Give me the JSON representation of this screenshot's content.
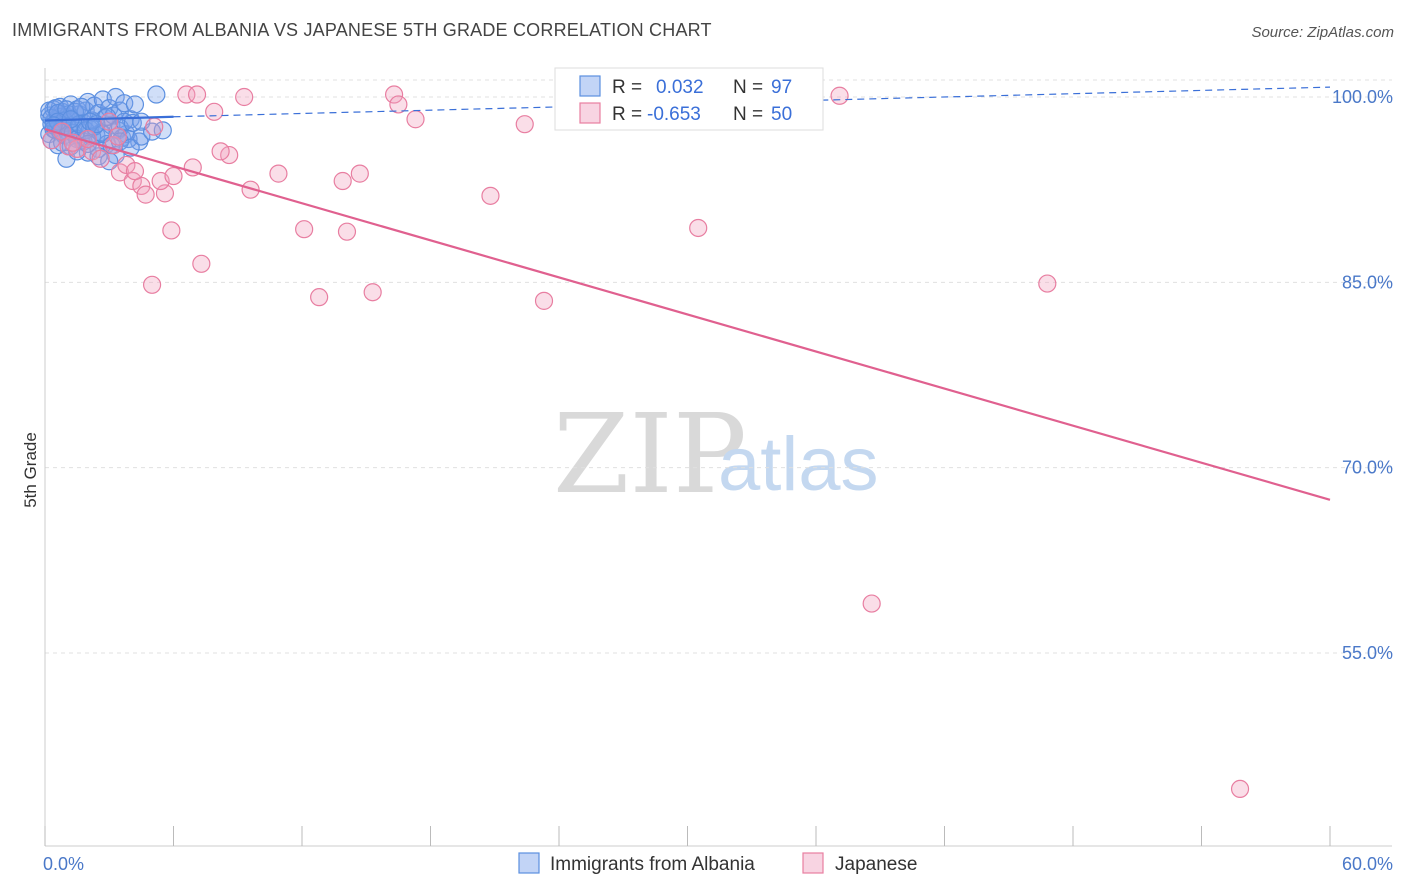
{
  "title": "IMMIGRANTS FROM ALBANIA VS JAPANESE 5TH GRADE CORRELATION CHART",
  "source": "Source: ZipAtlas.com",
  "watermark": {
    "zip": "ZIP",
    "atlas": "atlas"
  },
  "colors": {
    "blue": "#5b8fe0",
    "blue_fill": "rgba(120,160,235,0.35)",
    "blue_line": "#3a6fd8",
    "pink": "#e87ea1",
    "pink_fill": "rgba(240,160,190,0.35)",
    "pink_line": "#e0608f",
    "grid": "#e0e0e0",
    "tick_text": "#4a78c8"
  },
  "chart_data": {
    "type": "scatter",
    "title": "IMMIGRANTS FROM ALBANIA VS JAPANESE 5TH GRADE CORRELATION CHART",
    "xlabel": "",
    "ylabel": "5th Grade",
    "xlim": [
      0,
      60
    ],
    "ylim": [
      40,
      102
    ],
    "x_tick_labels": [
      "0.0%",
      "60.0%"
    ],
    "y_ticks": [
      55,
      70,
      85,
      100
    ],
    "y_tick_labels": [
      "55.0%",
      "70.0%",
      "85.0%",
      "100.0%"
    ],
    "legend": [
      {
        "r_label": "R =",
        "r_value": "0.032",
        "n_label": "N =",
        "n_value": "97"
      },
      {
        "r_label": "R =",
        "r_value": "-0.653",
        "n_label": "N =",
        "n_value": "50"
      }
    ],
    "series": [
      {
        "name": "Immigrants from Albania",
        "color": "blue",
        "trend": {
          "x": [
            0,
            6
          ],
          "y": [
            98.1,
            98.4
          ],
          "dashed_to": [
            60,
            100.8
          ]
        },
        "points": [
          [
            0.2,
            98.5
          ],
          [
            0.3,
            97.8
          ],
          [
            0.4,
            99.0
          ],
          [
            0.5,
            98.2
          ],
          [
            0.6,
            97.5
          ],
          [
            0.7,
            99.2
          ],
          [
            0.8,
            98.8
          ],
          [
            0.9,
            97.2
          ],
          [
            1.0,
            98.4
          ],
          [
            1.1,
            96.8
          ],
          [
            1.2,
            99.4
          ],
          [
            1.3,
            98.0
          ],
          [
            1.4,
            97.6
          ],
          [
            1.5,
            99.0
          ],
          [
            1.6,
            98.6
          ],
          [
            1.7,
            96.5
          ],
          [
            1.8,
            97.9
          ],
          [
            1.9,
            98.9
          ],
          [
            2.0,
            99.6
          ],
          [
            2.1,
            97.4
          ],
          [
            2.2,
            98.1
          ],
          [
            2.3,
            99.3
          ],
          [
            2.4,
            96.9
          ],
          [
            2.5,
            98.7
          ],
          [
            2.6,
            97.1
          ],
          [
            2.7,
            99.8
          ],
          [
            2.8,
            98.3
          ],
          [
            2.9,
            96.2
          ],
          [
            3.0,
            99.1
          ],
          [
            3.1,
            97.7
          ],
          [
            3.2,
            98.5
          ],
          [
            3.3,
            100.0
          ],
          [
            3.4,
            97.3
          ],
          [
            3.5,
            98.9
          ],
          [
            3.6,
            96.7
          ],
          [
            3.7,
            99.5
          ],
          [
            3.8,
            97.0
          ],
          [
            4.0,
            98.2
          ],
          [
            4.2,
            99.4
          ],
          [
            4.4,
            96.4
          ],
          [
            0.2,
            97.0
          ],
          [
            0.3,
            96.5
          ],
          [
            0.4,
            98.0
          ],
          [
            0.5,
            97.3
          ],
          [
            0.6,
            96.1
          ],
          [
            0.7,
            98.4
          ],
          [
            0.8,
            97.6
          ],
          [
            0.9,
            96.9
          ],
          [
            1.0,
            97.9
          ],
          [
            1.1,
            98.6
          ],
          [
            0.2,
            98.9
          ],
          [
            0.3,
            98.3
          ],
          [
            0.4,
            97.4
          ],
          [
            0.5,
            99.1
          ],
          [
            0.6,
            98.7
          ],
          [
            0.7,
            97.2
          ],
          [
            0.8,
            96.3
          ],
          [
            0.9,
            98.1
          ],
          [
            1.0,
            99.0
          ],
          [
            1.1,
            97.5
          ],
          [
            1.2,
            96.0
          ],
          [
            1.3,
            97.1
          ],
          [
            1.4,
            98.8
          ],
          [
            1.5,
            96.6
          ],
          [
            1.6,
            97.8
          ],
          [
            1.7,
            99.2
          ],
          [
            1.8,
            96.4
          ],
          [
            1.9,
            97.3
          ],
          [
            2.0,
            95.5
          ],
          [
            2.1,
            98.0
          ],
          [
            2.2,
            96.8
          ],
          [
            2.3,
            97.6
          ],
          [
            2.5,
            95.8
          ],
          [
            2.7,
            97.0
          ],
          [
            2.9,
            98.4
          ],
          [
            3.1,
            96.1
          ],
          [
            3.3,
            95.3
          ],
          [
            3.5,
            97.5
          ],
          [
            3.7,
            98.0
          ],
          [
            3.9,
            96.6
          ],
          [
            1.0,
            95.0
          ],
          [
            1.5,
            95.6
          ],
          [
            2.0,
            96.2
          ],
          [
            2.5,
            95.2
          ],
          [
            3.0,
            94.8
          ],
          [
            3.5,
            96.4
          ],
          [
            4.0,
            95.9
          ],
          [
            4.5,
            96.8
          ],
          [
            5.0,
            97.2
          ],
          [
            5.5,
            97.3
          ],
          [
            5.2,
            100.2
          ],
          [
            4.1,
            97.9
          ],
          [
            0.6,
            98.0
          ],
          [
            1.2,
            98.2
          ],
          [
            0.4,
            97.7
          ],
          [
            2.4,
            97.8
          ],
          [
            4.5,
            98.0
          ]
        ]
      },
      {
        "name": "Japanese",
        "color": "pink",
        "trend": {
          "x": [
            0,
            60
          ],
          "y": [
            97.4,
            67.4
          ]
        },
        "points": [
          [
            0.3,
            96.5
          ],
          [
            0.8,
            97.2
          ],
          [
            1.1,
            96.0
          ],
          [
            1.5,
            95.8
          ],
          [
            2.2,
            95.6
          ],
          [
            2.6,
            95.0
          ],
          [
            3.0,
            98.0
          ],
          [
            3.2,
            96.1
          ],
          [
            3.5,
            93.9
          ],
          [
            3.8,
            94.5
          ],
          [
            4.1,
            93.2
          ],
          [
            4.5,
            92.8
          ],
          [
            4.7,
            92.1
          ],
          [
            5.0,
            84.8
          ],
          [
            5.1,
            97.6
          ],
          [
            5.6,
            92.2
          ],
          [
            5.9,
            89.2
          ],
          [
            6.6,
            100.2
          ],
          [
            6.9,
            94.3
          ],
          [
            7.1,
            100.2
          ],
          [
            7.3,
            86.5
          ],
          [
            7.9,
            98.8
          ],
          [
            8.6,
            95.3
          ],
          [
            9.3,
            100.0
          ],
          [
            9.6,
            92.5
          ],
          [
            10.9,
            93.8
          ],
          [
            12.1,
            89.3
          ],
          [
            12.8,
            83.8
          ],
          [
            13.9,
            93.2
          ],
          [
            14.1,
            89.1
          ],
          [
            14.7,
            93.8
          ],
          [
            15.3,
            84.2
          ],
          [
            16.3,
            100.2
          ],
          [
            16.5,
            99.4
          ],
          [
            17.3,
            98.2
          ],
          [
            20.8,
            92.0
          ],
          [
            22.4,
            97.8
          ],
          [
            23.3,
            83.5
          ],
          [
            30.5,
            89.4
          ],
          [
            37.1,
            100.1
          ],
          [
            38.6,
            59.0
          ],
          [
            46.8,
            84.9
          ],
          [
            55.8,
            44.0
          ],
          [
            3.4,
            96.8
          ],
          [
            2.0,
            96.6
          ],
          [
            1.3,
            96.3
          ],
          [
            5.4,
            93.2
          ],
          [
            8.2,
            95.6
          ],
          [
            6.0,
            93.6
          ],
          [
            4.2,
            94.0
          ]
        ]
      }
    ]
  },
  "bottom_legend": [
    {
      "label": "Immigrants from Albania",
      "color": "blue"
    },
    {
      "label": "Japanese",
      "color": "pink"
    }
  ]
}
